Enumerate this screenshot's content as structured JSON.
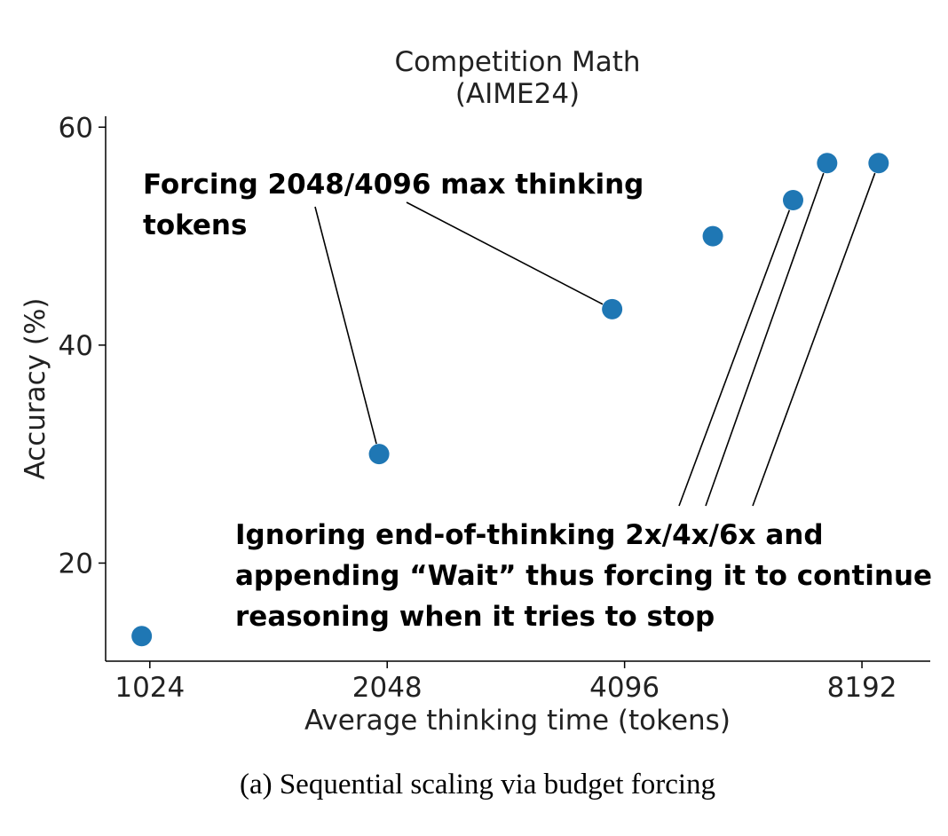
{
  "caption": "(a) Sequential scaling via budget forcing",
  "chart_data": {
    "type": "scatter",
    "title": "Competition Math\n(AIME24)",
    "xlabel": "Average thinking time (tokens)",
    "ylabel": "Accuracy (%)",
    "x_scale": "log2",
    "xlim": [
      900,
      10000
    ],
    "ylim": [
      11,
      61
    ],
    "xticks": [
      1024,
      2048,
      4096,
      8192
    ],
    "xtick_labels": [
      "1024",
      "2048",
      "4096",
      "8192"
    ],
    "yticks": [
      20,
      40,
      60
    ],
    "ytick_labels": [
      "20",
      "40",
      "60"
    ],
    "grid": false,
    "marker_color": "#1f77b4",
    "points": [
      {
        "x": 1000,
        "y": 13.3
      },
      {
        "x": 2000,
        "y": 30.0
      },
      {
        "x": 3950,
        "y": 43.3
      },
      {
        "x": 5300,
        "y": 50.0
      },
      {
        "x": 6700,
        "y": 53.3
      },
      {
        "x": 7400,
        "y": 56.7
      },
      {
        "x": 8600,
        "y": 56.7
      }
    ],
    "annotations": [
      {
        "text": "Forcing 2048/4096 max thinking\ntokens",
        "points": [
          1,
          2
        ]
      },
      {
        "text": "Ignoring end-of-thinking 2x/4x/6x and\nappending “Wait” thus forcing it to continue\nreasoning when it tries to stop",
        "points": [
          4,
          5,
          6
        ]
      }
    ]
  }
}
